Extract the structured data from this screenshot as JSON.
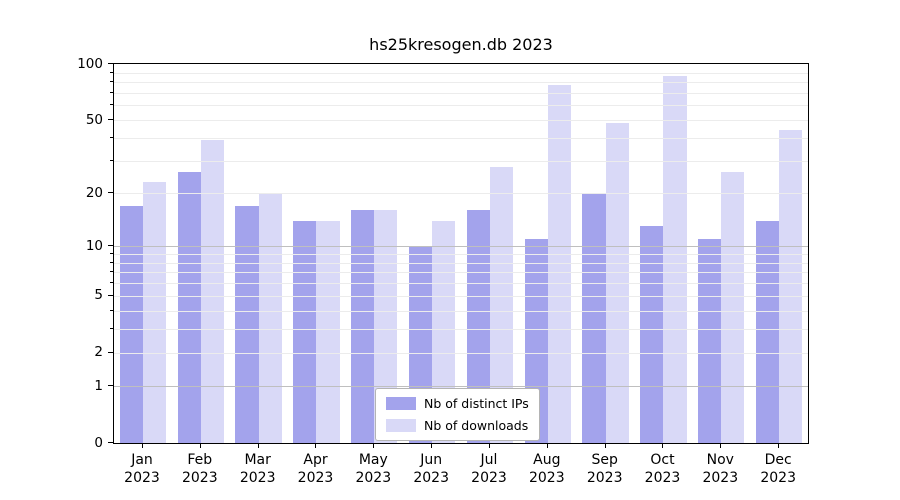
{
  "chart_data": {
    "type": "bar",
    "title": "hs25kresogen.db 2023",
    "categories": [
      {
        "line1": "Jan",
        "line2": "2023"
      },
      {
        "line1": "Feb",
        "line2": "2023"
      },
      {
        "line1": "Mar",
        "line2": "2023"
      },
      {
        "line1": "Apr",
        "line2": "2023"
      },
      {
        "line1": "May",
        "line2": "2023"
      },
      {
        "line1": "Jun",
        "line2": "2023"
      },
      {
        "line1": "Jul",
        "line2": "2023"
      },
      {
        "line1": "Aug",
        "line2": "2023"
      },
      {
        "line1": "Sep",
        "line2": "2023"
      },
      {
        "line1": "Oct",
        "line2": "2023"
      },
      {
        "line1": "Nov",
        "line2": "2023"
      },
      {
        "line1": "Dec",
        "line2": "2023"
      }
    ],
    "series": [
      {
        "name": "Nb of distinct IPs",
        "color": "#a3a3ec",
        "values": [
          17,
          26,
          17,
          14,
          16,
          10,
          16,
          11,
          20,
          13,
          11,
          14
        ]
      },
      {
        "name": "Nb of downloads",
        "color": "#d9d9f7",
        "values": [
          23,
          39,
          20,
          14,
          16,
          14,
          28,
          77,
          48,
          86,
          26,
          44
        ]
      }
    ],
    "yscale": "log1p",
    "ylim": [
      0,
      100
    ],
    "yticks_major": [
      0,
      1,
      2,
      5,
      10,
      20,
      50,
      100
    ],
    "yticks_minor": [
      3,
      4,
      6,
      7,
      8,
      9,
      30,
      40,
      60,
      70,
      80,
      90
    ],
    "gridlines_major": [
      1,
      10
    ],
    "gridlines_minor": [
      2,
      3,
      4,
      5,
      6,
      7,
      8,
      9,
      20,
      30,
      40,
      50,
      60,
      70,
      80,
      90
    ],
    "grid": true,
    "legend_position": "lower center",
    "colors": {
      "grid_minor": "#ececec",
      "grid_major": "#bfbfbf",
      "axis": "#000000"
    }
  }
}
